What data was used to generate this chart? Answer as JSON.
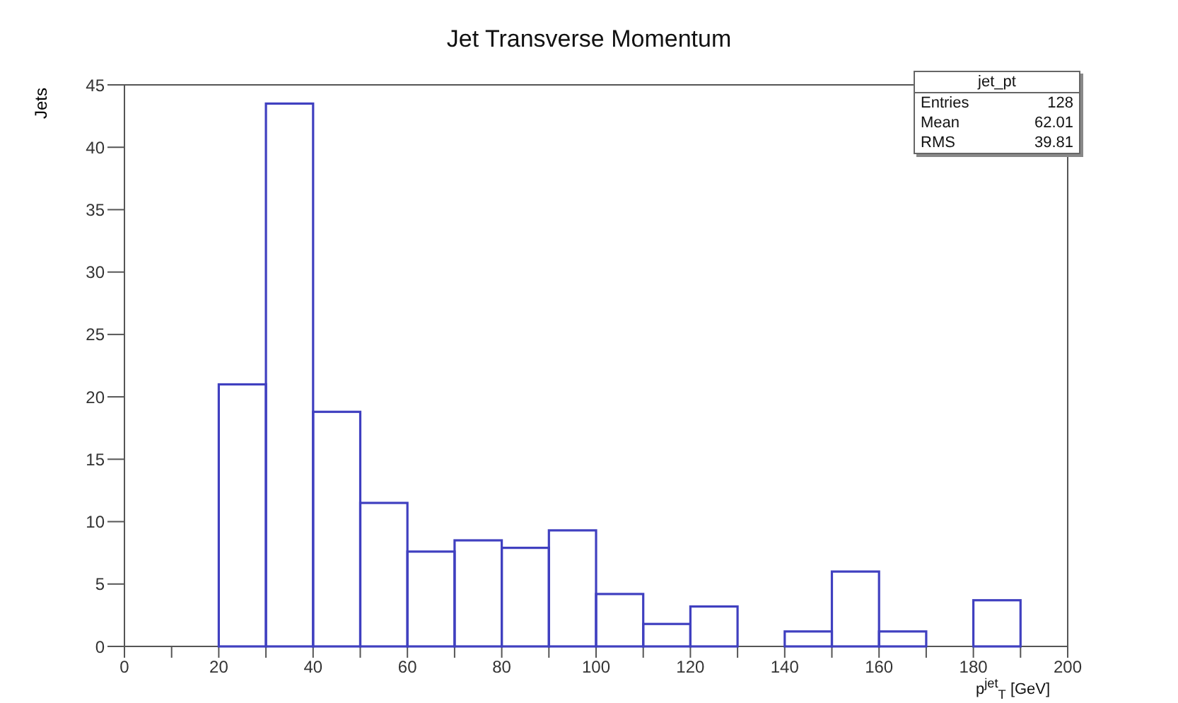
{
  "chart_data": {
    "type": "histogram",
    "title": "Jet Transverse Momentum",
    "xlabel": "p$^{jet}$$_{T}$ [GeV]",
    "ylabel": "Jets",
    "bins": [
      0,
      10,
      20,
      30,
      40,
      50,
      60,
      70,
      80,
      90,
      100,
      110,
      120,
      130,
      140,
      150,
      160,
      170,
      180,
      190,
      200
    ],
    "values": [
      0,
      0,
      21,
      43.5,
      18.8,
      11.5,
      7.6,
      8.5,
      7.9,
      9.3,
      4.2,
      1.8,
      3.2,
      0,
      1.2,
      6,
      1.2,
      0,
      3.7,
      0
    ],
    "color": "#4040c0",
    "xlim": [
      0,
      200
    ],
    "xticks": [
      0,
      {
        "value": 10,
        "label": null
      },
      20,
      {
        "value": 30,
        "label": null
      },
      40,
      {
        "value": 50,
        "label": null
      },
      60,
      {
        "value": 70,
        "label": null
      },
      80,
      {
        "value": 90,
        "label": null
      },
      100,
      {
        "value": 110,
        "label": null
      },
      120,
      {
        "value": 130,
        "label": null
      },
      140,
      {
        "value": 150,
        "label": null
      },
      160,
      {
        "value": 170,
        "label": null
      },
      180,
      {
        "value": 190,
        "label": null
      },
      200
    ],
    "ylim": [
      0,
      45
    ],
    "yticks": [
      0,
      5,
      10,
      15,
      20,
      25,
      30,
      35,
      40,
      45
    ],
    "annotations": [
      "jet_pt",
      "Entries",
      "128",
      "Mean",
      "62.01",
      "RMS",
      "39.81"
    ]
  }
}
